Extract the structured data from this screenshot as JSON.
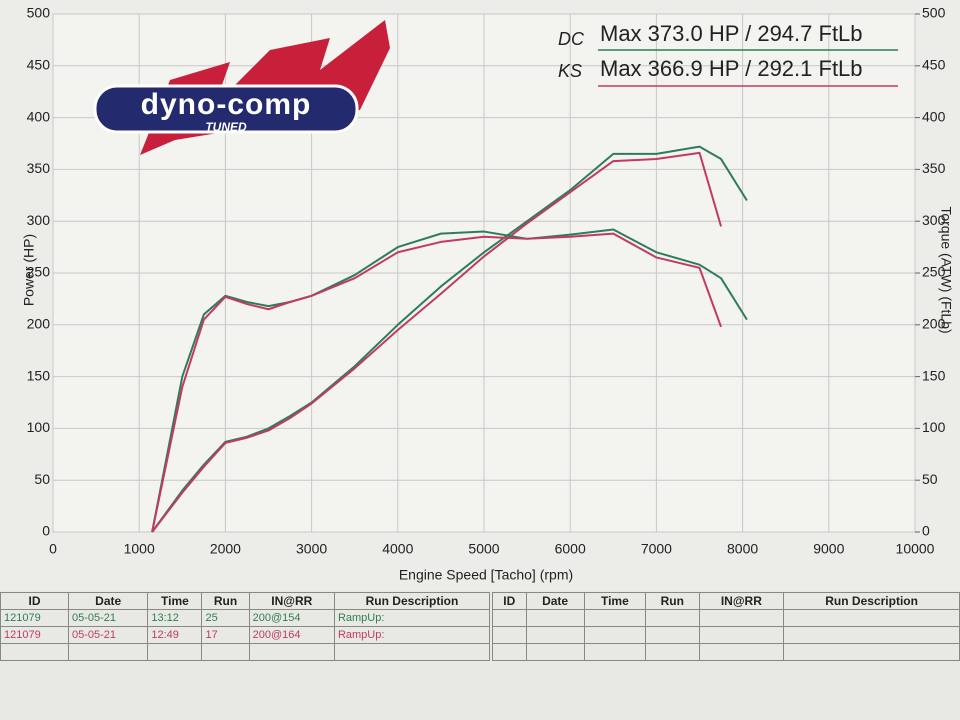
{
  "chart_data": {
    "type": "line",
    "x_label": "Engine Speed [Tacho] (rpm)",
    "y_label": "Power (HP)",
    "y2_label": "Torque (ATW) (FtLb)",
    "x": [
      1150,
      1500,
      1750,
      2000,
      2250,
      2500,
      2750,
      3000,
      3500,
      4000,
      4500,
      5000,
      5500,
      6000,
      6500,
      7000,
      7500,
      7750,
      8050
    ],
    "xlim": [
      0,
      10000
    ],
    "xticks": [
      0,
      1000,
      2000,
      3000,
      4000,
      5000,
      6000,
      7000,
      8000,
      9000,
      10000
    ],
    "ylim": [
      0,
      500
    ],
    "yticks": [
      0,
      50,
      100,
      150,
      200,
      250,
      300,
      350,
      400,
      450,
      500
    ],
    "y2lim": [
      0,
      500
    ],
    "y2ticks": [
      0,
      50,
      100,
      150,
      200,
      250,
      300,
      350,
      400,
      450,
      500
    ],
    "grid": true,
    "series": [
      {
        "color": "#2e7d55",
        "values": [
          0,
          40,
          65,
          87,
          92,
          100,
          112,
          125,
          160,
          200,
          237,
          270,
          300,
          330,
          365,
          365,
          372,
          360,
          320
        ]
      },
      {
        "color": "#c23a62",
        "values": [
          0,
          38,
          63,
          86,
          91,
          98,
          110,
          124,
          158,
          195,
          230,
          266,
          298,
          328,
          358,
          360,
          366,
          295,
          null
        ]
      },
      {
        "color": "#2e7d55",
        "axis": "y2",
        "values": [
          0,
          150,
          210,
          228,
          222,
          218,
          222,
          228,
          248,
          275,
          288,
          290,
          283,
          287,
          292,
          270,
          258,
          245,
          205
        ]
      },
      {
        "color": "#c23a62",
        "axis": "y2",
        "values": [
          0,
          140,
          205,
          227,
          220,
          215,
          222,
          228,
          245,
          270,
          280,
          285,
          283,
          285,
          288,
          265,
          255,
          198,
          null
        ]
      }
    ],
    "annotations": [
      {
        "text": "DC",
        "color": "#222222"
      },
      {
        "text": "KS",
        "color": "#222222"
      },
      {
        "text": "Max 373.0 HP  / 294.7 FtLb",
        "color": "#2e7d55"
      },
      {
        "text": "Max 366.9 HP  / 292.1 FtLb",
        "color": "#c23a62"
      }
    ]
  },
  "logo": {
    "text": "dyno-comp",
    "subtext": "TUNED"
  },
  "table": {
    "headers": [
      "ID",
      "Date",
      "Time",
      "Run",
      "IN@RR",
      "Run Description"
    ],
    "rows": [
      [
        "121079",
        "05-05-21",
        "13:12",
        "25",
        "200@154",
        "RampUp:"
      ],
      [
        "121079",
        "05-05-21",
        "12:49",
        "17",
        "200@164",
        "RampUp:"
      ]
    ],
    "headers_right": [
      "ID",
      "Date",
      "Time",
      "Run",
      "IN@RR",
      "Run Description"
    ]
  }
}
